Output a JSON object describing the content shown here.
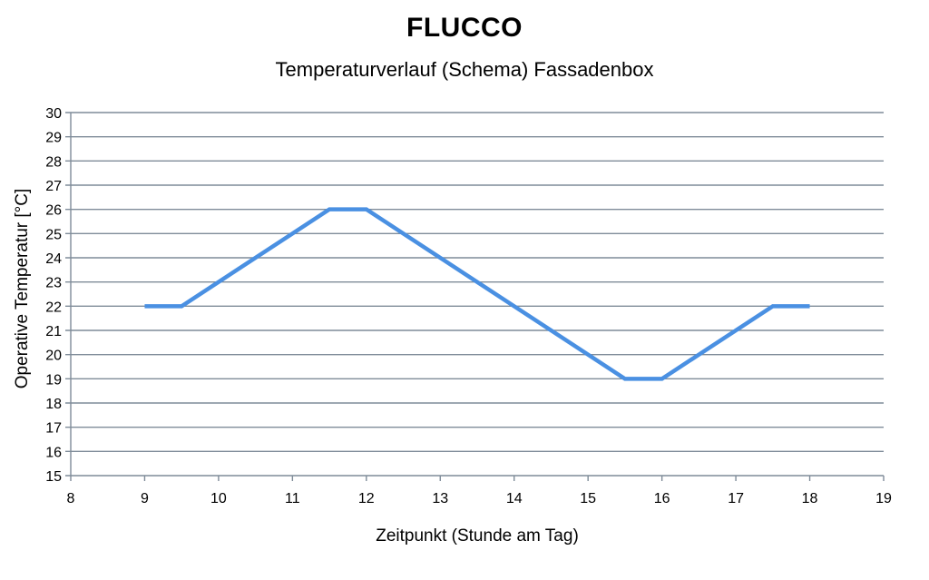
{
  "chart_data": {
    "type": "line",
    "title": "FLUCCO",
    "subtitle": "Temperaturverlauf  (Schema) Fassadenbox",
    "xlabel": "Zeitpunkt (Stunde am Tag)",
    "ylabel": "Operative Temperatur [°C]",
    "xlim": [
      8,
      19
    ],
    "ylim": [
      15,
      30
    ],
    "x_ticks": [
      8,
      9,
      10,
      11,
      12,
      13,
      14,
      15,
      16,
      17,
      18,
      19
    ],
    "y_ticks": [
      15,
      16,
      17,
      18,
      19,
      20,
      21,
      22,
      23,
      24,
      25,
      26,
      27,
      28,
      29,
      30
    ],
    "grid": true,
    "legend": "none",
    "series": [
      {
        "color": "#4a90e2",
        "x": [
          9,
          9.5,
          11.5,
          12,
          15.5,
          16,
          17.5,
          18
        ],
        "y": [
          22,
          22,
          26,
          26,
          19,
          19,
          22,
          22
        ]
      }
    ],
    "colors": {
      "grid": "#7f8c99",
      "line": "#4a90e2"
    }
  }
}
